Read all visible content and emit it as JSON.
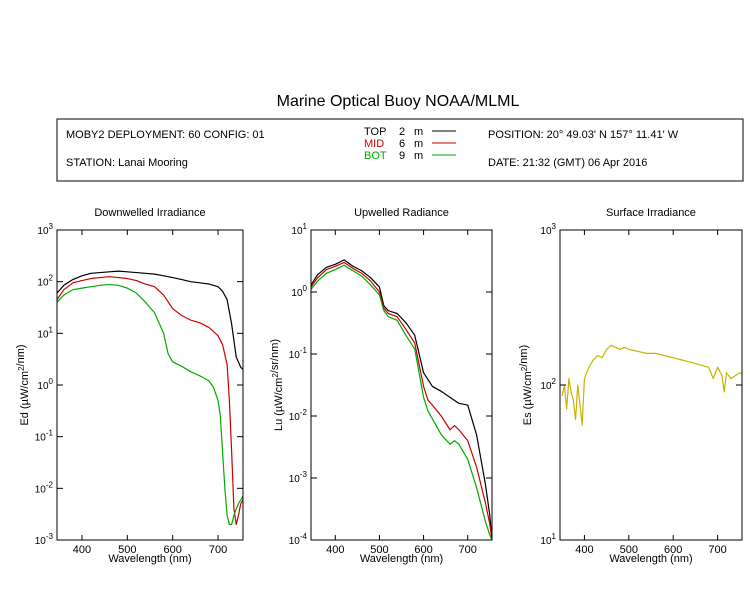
{
  "title": "Marine Optical Buoy NOAA/MLML",
  "info": {
    "deployment": "MOBY2 DEPLOYMENT: 60 CONFIG: 01",
    "station": "STATION: Lanai Mooring",
    "position": "POSITION: 20° 49.03' N   157° 11.41' W",
    "date": "DATE: 21:32 (GMT) 06 Apr 2016"
  },
  "legend": [
    {
      "name": "TOP",
      "depth": "2",
      "unit": "m",
      "color": "#000000"
    },
    {
      "name": "MID",
      "depth": "6",
      "unit": "m",
      "color": "#cc0000"
    },
    {
      "name": "BOT",
      "depth": "9",
      "unit": "m",
      "color": "#00aa00"
    }
  ],
  "chart_data": [
    {
      "type": "line",
      "title": "Downwelled Irradiance",
      "xlabel": "Wavelength (nm)",
      "ylabel": "Ed  (µW/cm²/nm)",
      "xlim": [
        345,
        755
      ],
      "ylim": [
        0.001,
        1000
      ],
      "yscale": "log",
      "xticks": [
        400,
        500,
        600,
        700
      ],
      "yticks": [
        {
          "value": 0.001,
          "base": "10",
          "exp": "-3"
        },
        {
          "value": 0.01,
          "base": "10",
          "exp": "-2"
        },
        {
          "value": 0.1,
          "base": "10",
          "exp": "-1"
        },
        {
          "value": 1,
          "base": "10",
          "exp": "0"
        },
        {
          "value": 10,
          "base": "10",
          "exp": "1"
        },
        {
          "value": 100,
          "base": "10",
          "exp": "2"
        },
        {
          "value": 1000,
          "base": "10",
          "exp": "3"
        }
      ],
      "series": [
        {
          "name": "TOP",
          "color": "#000000",
          "x": [
            345,
            360,
            380,
            400,
            420,
            440,
            460,
            480,
            500,
            520,
            540,
            560,
            580,
            600,
            620,
            640,
            660,
            680,
            700,
            710,
            720,
            730,
            740,
            750,
            755
          ],
          "y": [
            60,
            85,
            110,
            130,
            145,
            150,
            155,
            160,
            155,
            150,
            145,
            140,
            130,
            120,
            110,
            100,
            95,
            90,
            80,
            65,
            45,
            15,
            3.5,
            2.2,
            2.0
          ]
        },
        {
          "name": "MID",
          "color": "#cc0000",
          "x": [
            345,
            360,
            380,
            400,
            420,
            440,
            460,
            480,
            500,
            520,
            540,
            560,
            580,
            600,
            620,
            640,
            660,
            680,
            700,
            710,
            720,
            725,
            730,
            735,
            740,
            745,
            750,
            755
          ],
          "y": [
            45,
            70,
            95,
            105,
            115,
            120,
            125,
            120,
            115,
            105,
            90,
            80,
            55,
            30,
            22,
            18,
            16,
            13,
            9,
            6,
            2.5,
            0.5,
            0.05,
            0.004,
            0.002,
            0.003,
            0.005,
            0.006
          ]
        },
        {
          "name": "BOT",
          "color": "#00aa00",
          "x": [
            345,
            360,
            380,
            400,
            420,
            440,
            460,
            480,
            500,
            520,
            540,
            560,
            580,
            590,
            600,
            620,
            640,
            660,
            680,
            690,
            700,
            705,
            710,
            715,
            720,
            725,
            730,
            735,
            740,
            745,
            750,
            755
          ],
          "y": [
            40,
            55,
            70,
            75,
            80,
            85,
            88,
            85,
            75,
            60,
            40,
            25,
            10,
            4,
            2.8,
            2.3,
            1.8,
            1.5,
            1.2,
            0.9,
            0.5,
            0.25,
            0.05,
            0.01,
            0.003,
            0.002,
            0.002,
            0.003,
            0.004,
            0.005,
            0.006,
            0.007
          ]
        }
      ]
    },
    {
      "type": "line",
      "title": "Upwelled Radiance",
      "xlabel": "Wavelength (nm)",
      "ylabel": "Lu  (µW/cm²/sr/nm)",
      "xlim": [
        345,
        755
      ],
      "ylim": [
        0.0001,
        10
      ],
      "yscale": "log",
      "xticks": [
        400,
        500,
        600,
        700
      ],
      "yticks": [
        {
          "value": 0.0001,
          "base": "10",
          "exp": "-4"
        },
        {
          "value": 0.001,
          "base": "10",
          "exp": "-3"
        },
        {
          "value": 0.01,
          "base": "10",
          "exp": "-2"
        },
        {
          "value": 0.1,
          "base": "10",
          "exp": "-1"
        },
        {
          "value": 1,
          "base": "10",
          "exp": "0"
        },
        {
          "value": 10,
          "base": "10",
          "exp": "1"
        }
      ],
      "series": [
        {
          "name": "TOP",
          "color": "#000000",
          "x": [
            345,
            360,
            380,
            400,
            420,
            440,
            460,
            480,
            500,
            510,
            520,
            540,
            560,
            580,
            600,
            620,
            640,
            660,
            680,
            700,
            720,
            740,
            750,
            755
          ],
          "y": [
            1.3,
            1.9,
            2.5,
            2.8,
            3.3,
            2.6,
            2.2,
            1.7,
            1.2,
            0.6,
            0.5,
            0.45,
            0.32,
            0.2,
            0.05,
            0.03,
            0.025,
            0.02,
            0.016,
            0.015,
            0.005,
            0.0008,
            0.00025,
            0.0001
          ]
        },
        {
          "name": "MID",
          "color": "#cc0000",
          "x": [
            345,
            360,
            380,
            400,
            420,
            440,
            460,
            480,
            500,
            510,
            520,
            540,
            560,
            580,
            600,
            610,
            620,
            640,
            660,
            670,
            680,
            700,
            720,
            740,
            750,
            755
          ],
          "y": [
            1.2,
            1.7,
            2.3,
            2.6,
            3.0,
            2.4,
            2.0,
            1.5,
            1.0,
            0.55,
            0.45,
            0.4,
            0.25,
            0.15,
            0.03,
            0.018,
            0.015,
            0.01,
            0.006,
            0.007,
            0.006,
            0.004,
            0.0015,
            0.0004,
            0.00018,
            0.0001
          ]
        },
        {
          "name": "BOT",
          "color": "#00aa00",
          "x": [
            345,
            360,
            380,
            400,
            420,
            440,
            460,
            480,
            500,
            510,
            520,
            540,
            560,
            580,
            600,
            610,
            620,
            640,
            660,
            670,
            680,
            700,
            720,
            740,
            750,
            755
          ],
          "y": [
            1.1,
            1.5,
            2.0,
            2.3,
            2.7,
            2.2,
            1.8,
            1.3,
            0.9,
            0.5,
            0.4,
            0.35,
            0.2,
            0.12,
            0.02,
            0.012,
            0.009,
            0.005,
            0.0035,
            0.004,
            0.0035,
            0.002,
            0.0007,
            0.0002,
            0.00012,
            0.0001
          ]
        }
      ]
    },
    {
      "type": "line",
      "title": "Surface Irradiance",
      "xlabel": "Wavelength (nm)",
      "ylabel": "Es  (µW/cm²/nm)",
      "xlim": [
        345,
        755
      ],
      "ylim": [
        10,
        1000
      ],
      "yscale": "log",
      "xticks": [
        400,
        500,
        600,
        700
      ],
      "yticks": [
        {
          "value": 10,
          "base": "10",
          "exp": "1"
        },
        {
          "value": 100,
          "base": "10",
          "exp": "2"
        },
        {
          "value": 1000,
          "base": "10",
          "exp": "3"
        }
      ],
      "series": [
        {
          "name": "Es",
          "color": "#c8b400",
          "x": [
            350,
            355,
            360,
            365,
            370,
            375,
            380,
            385,
            390,
            395,
            400,
            410,
            420,
            430,
            440,
            450,
            460,
            470,
            480,
            490,
            500,
            520,
            540,
            560,
            580,
            600,
            620,
            640,
            660,
            680,
            690,
            700,
            710,
            715,
            720,
            730,
            740,
            750,
            755
          ],
          "y": [
            85,
            100,
            70,
            110,
            90,
            80,
            60,
            100,
            75,
            55,
            110,
            130,
            145,
            155,
            150,
            170,
            180,
            175,
            170,
            175,
            170,
            165,
            160,
            160,
            155,
            150,
            145,
            140,
            135,
            130,
            110,
            130,
            115,
            90,
            120,
            110,
            115,
            120,
            118
          ]
        }
      ]
    }
  ]
}
